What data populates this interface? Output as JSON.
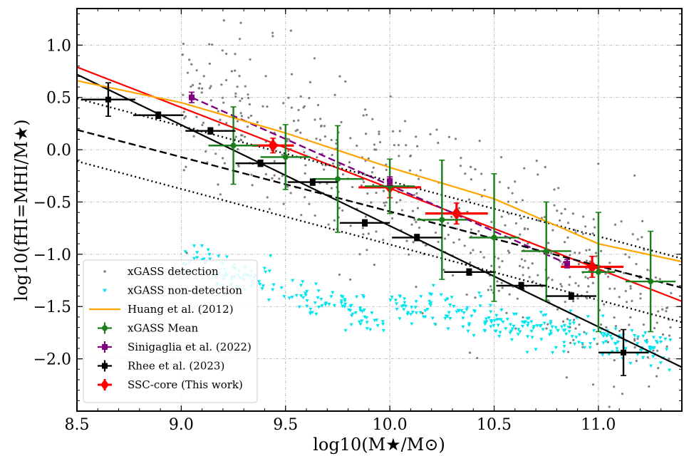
{
  "chart_data": {
    "type": "scatter",
    "title": "",
    "xlabel": "log10(M★/M⊙)",
    "ylabel": "log10(fHI=MHI/M★)",
    "xlim": [
      8.5,
      11.4
    ],
    "ylim": [
      -2.5,
      1.35
    ],
    "x_ticks": [
      8.5,
      9.0,
      9.5,
      10.0,
      10.5,
      11.0
    ],
    "x_tick_labels": [
      "8.5",
      "9.0",
      "9.5",
      "10.0",
      "10.5",
      "11.0"
    ],
    "y_ticks": [
      -2.0,
      -1.5,
      -1.0,
      -0.5,
      0.0,
      0.5,
      1.0
    ],
    "y_tick_labels": [
      "−2.0",
      "−1.5",
      "−1.0",
      "−0.5",
      "0.0",
      "0.5",
      "1.0"
    ],
    "grid": true,
    "legend_position": "lower-left",
    "legend": [
      {
        "label": "xGASS detection",
        "marker": "dot",
        "color": "#808080"
      },
      {
        "label": "xGASS non-detection",
        "marker": "triangle-down",
        "color": "#00e5ee"
      },
      {
        "label": "Huang et al. (2012)",
        "marker": "line",
        "color": "#ffa500"
      },
      {
        "label": "xGASS Mean",
        "marker": "errorbar-dot",
        "color": "#1a7f1a"
      },
      {
        "label": "Sinigaglia et al. (2022)",
        "marker": "errorbar-square",
        "color": "#800080"
      },
      {
        "label": "Rhee et al. (2023)",
        "marker": "errorbar-square",
        "color": "#000000"
      },
      {
        "label": "SSC-core (This work)",
        "marker": "errorbar-diamond",
        "color": "#ff0000"
      }
    ],
    "series": [
      {
        "name": "Huang et al. (2012)",
        "kind": "line",
        "color": "#ffa500",
        "x": [
          8.5,
          9.0,
          9.5,
          10.0,
          10.5,
          11.0,
          11.4
        ],
        "y": [
          0.66,
          0.45,
          0.16,
          -0.17,
          -0.47,
          -0.9,
          -1.07
        ]
      },
      {
        "name": "SSC-core (This work)",
        "kind": "errorbar",
        "color": "#ff0000",
        "x": [
          9.44,
          10.0,
          10.32,
          10.97
        ],
        "y": [
          0.04,
          -0.36,
          -0.61,
          -1.12
        ],
        "xerr": [
          0.1,
          0.15,
          0.15,
          0.15
        ],
        "yerr": [
          0.07,
          0.1,
          0.1,
          0.1
        ]
      },
      {
        "name": "xGASS Mean",
        "kind": "errorbar",
        "color": "#1a7f1a",
        "x": [
          9.25,
          9.5,
          9.75,
          10.0,
          10.25,
          10.5,
          10.75,
          11.0,
          11.25
        ],
        "y": [
          0.04,
          -0.07,
          -0.28,
          -0.35,
          -0.67,
          -0.84,
          -0.97,
          -1.17,
          -1.26
        ],
        "xerr": [
          0.12,
          0.12,
          0.12,
          0.12,
          0.12,
          0.12,
          0.12,
          0.08,
          0.12
        ],
        "yerr": [
          0.37,
          0.31,
          0.51,
          0.26,
          0.57,
          0.61,
          0.47,
          0.57,
          0.48
        ]
      },
      {
        "name": "Sinigaglia et al. (2022)",
        "kind": "errorbar",
        "color": "#800080",
        "x": [
          9.05,
          10.0,
          10.85
        ],
        "y": [
          0.5,
          -0.3,
          -1.09
        ],
        "xerr": [
          0,
          0,
          0
        ],
        "yerr": [
          0.05,
          0.04,
          0.04
        ]
      },
      {
        "name": "Rhee et al. (2023)",
        "kind": "errorbar",
        "color": "#000000",
        "x": [
          8.65,
          8.89,
          9.14,
          9.38,
          9.63,
          9.88,
          10.13,
          10.38,
          10.63,
          10.87,
          11.12
        ],
        "y": [
          0.48,
          0.33,
          0.18,
          -0.13,
          -0.31,
          -0.7,
          -0.84,
          -1.17,
          -1.3,
          -1.4,
          -1.94
        ],
        "xerr": [
          0.13,
          0.12,
          0.12,
          0.12,
          0.12,
          0.12,
          0.12,
          0.12,
          0.12,
          0.12,
          0.12
        ],
        "yerr": [
          0.16,
          0.03,
          0.03,
          0.03,
          0.03,
          0.03,
          0.03,
          0.03,
          0.03,
          0.03,
          0.22
        ]
      }
    ],
    "fit_lines": [
      {
        "color": "#ff0000",
        "style": "solid",
        "x": [
          8.5,
          11.4
        ],
        "y": [
          0.79,
          -1.45
        ]
      },
      {
        "color": "#000000",
        "style": "solid",
        "x": [
          8.5,
          11.4
        ],
        "y": [
          0.72,
          -2.08
        ]
      },
      {
        "color": "#800080",
        "style": "dashed",
        "x": [
          9.05,
          10.85
        ],
        "y": [
          0.5,
          -1.09
        ]
      },
      {
        "color": "#000000",
        "style": "dashed",
        "x": [
          8.5,
          11.4
        ],
        "y": [
          0.19,
          -1.32
        ]
      },
      {
        "color": "#000000",
        "style": "dotted",
        "x": [
          8.5,
          11.4
        ],
        "y": [
          0.49,
          -1.04
        ]
      },
      {
        "color": "#000000",
        "style": "dotted",
        "x": [
          8.5,
          11.4
        ],
        "y": [
          -0.11,
          -1.65
        ]
      }
    ]
  }
}
